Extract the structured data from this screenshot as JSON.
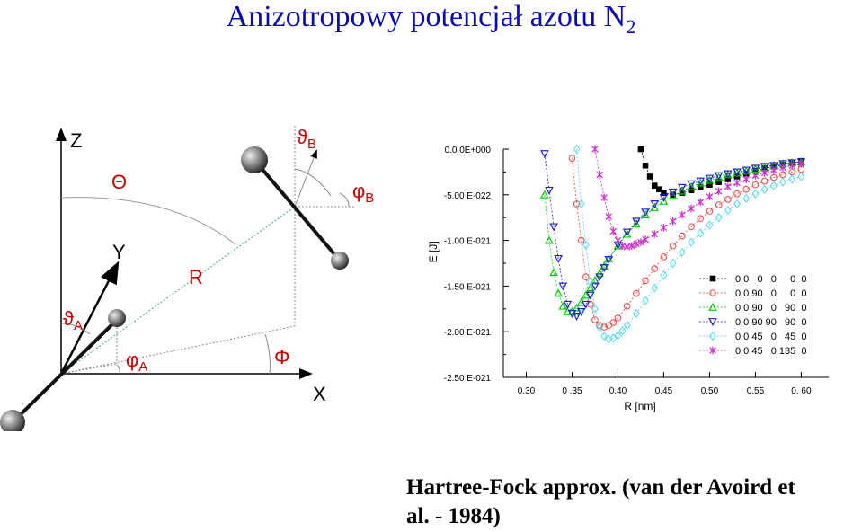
{
  "title_main": "Anizotropowy potencjał azotu N",
  "title_sub": "2",
  "diagram": {
    "axis_z": "Z",
    "axis_y": "Y",
    "axis_x": "X",
    "theta_big": "Θ",
    "theta_a": "ϑ",
    "theta_a_sub": "A",
    "theta_b": "ϑ",
    "theta_b_sub": "B",
    "phi_a": "φ",
    "phi_a_sub": "A",
    "phi_b": "φ",
    "phi_b_sub": "B",
    "phi_big": "Φ",
    "r_label": "R",
    "label_color": "#cc0000"
  },
  "chart_data": {
    "type": "scatter",
    "xlabel": "R [nm]",
    "ylabel": "E [J]",
    "xlim": [
      0.275,
      0.63
    ],
    "ylim": [
      -2.5e-21,
      0.0
    ],
    "xticks": [
      0.3,
      0.35,
      0.4,
      0.45,
      0.5,
      0.55,
      0.6
    ],
    "xtick_labels": [
      "0.30",
      "0 .35",
      "0.40",
      "0.45",
      "0.50",
      "0.55",
      "0. 60"
    ],
    "yticks": [
      0.0,
      -5e-22,
      -1e-21,
      -1.5e-21,
      -2e-21,
      -2.5e-21
    ],
    "ytick_labels": [
      "0.0 0E+000",
      "-5.00 E-022",
      "-1.00 E-021",
      "-1.50 E-021",
      "-2.00 E-021",
      "-2.50 E-021"
    ],
    "legend_position": "right",
    "grid": false,
    "series": [
      {
        "name": "0 0   0   0     0  0",
        "color": "#000000",
        "marker": "square",
        "x": [
          0.425,
          0.43,
          0.435,
          0.44,
          0.445,
          0.45,
          0.46,
          0.47,
          0.48,
          0.49,
          0.5,
          0.51,
          0.52,
          0.53,
          0.54,
          0.55,
          0.56,
          0.57,
          0.58,
          0.59,
          0.6
        ],
        "y": [
          -0.0,
          -1.8e-22,
          -3e-22,
          -4e-22,
          -4.4e-22,
          -4.8e-22,
          -5e-22,
          -4.8e-22,
          -4.5e-22,
          -4.2e-22,
          -3.9e-22,
          -3.6e-22,
          -3.3e-22,
          -3e-22,
          -2.7e-22,
          -2.4e-22,
          -2.1e-22,
          -1.9e-22,
          -1.7e-22,
          -1.5e-22,
          -1.3e-22
        ]
      },
      {
        "name": "0 0 90   0     0  0",
        "color": "#ee4444",
        "marker": "circle",
        "x": [
          0.35,
          0.355,
          0.36,
          0.365,
          0.37,
          0.375,
          0.38,
          0.385,
          0.39,
          0.395,
          0.4,
          0.41,
          0.42,
          0.43,
          0.44,
          0.45,
          0.46,
          0.47,
          0.48,
          0.49,
          0.5,
          0.51,
          0.52,
          0.53,
          0.54,
          0.55,
          0.56,
          0.57,
          0.58,
          0.59,
          0.6
        ],
        "y": [
          -1e-22,
          -6e-22,
          -1e-21,
          -1.4e-21,
          -1.7e-21,
          -1.87e-21,
          -1.93e-21,
          -1.95e-21,
          -1.93e-21,
          -1.9e-21,
          -1.85e-21,
          -1.72e-21,
          -1.58e-21,
          -1.44e-21,
          -1.31e-21,
          -1.18e-21,
          -1.06e-21,
          -9.5e-22,
          -8.5e-22,
          -7.6e-22,
          -6.8e-22,
          -6.1e-22,
          -5.5e-22,
          -4.9e-22,
          -4.4e-22,
          -3.9e-22,
          -3.5e-22,
          -3.1e-22,
          -2.8e-22,
          -2.5e-22,
          -2.2e-22
        ]
      },
      {
        "name": "0 0 90   0   90  0",
        "color": "#00cc00",
        "marker": "triangle-up",
        "x": [
          0.32,
          0.325,
          0.33,
          0.335,
          0.34,
          0.345,
          0.35,
          0.355,
          0.36,
          0.365,
          0.37,
          0.375,
          0.38,
          0.385,
          0.39,
          0.4,
          0.41,
          0.42,
          0.43,
          0.44,
          0.45,
          0.46,
          0.47,
          0.48,
          0.49,
          0.5,
          0.51,
          0.52,
          0.53,
          0.54,
          0.55,
          0.56,
          0.57,
          0.58,
          0.59,
          0.6
        ],
        "y": [
          -5e-22,
          -1e-21,
          -1.35e-21,
          -1.58e-21,
          -1.72e-21,
          -1.78e-21,
          -1.78e-21,
          -1.74e-21,
          -1.68e-21,
          -1.6e-21,
          -1.52e-21,
          -1.44e-21,
          -1.36e-21,
          -1.28e-21,
          -1.2e-21,
          -1.06e-21,
          -9.3e-22,
          -8.2e-22,
          -7.2e-22,
          -6.4e-22,
          -5.7e-22,
          -5.1e-22,
          -4.6e-22,
          -4.1e-22,
          -3.7e-22,
          -3.4e-22,
          -3.1e-22,
          -2.8e-22,
          -2.6e-22,
          -2.4e-22,
          -2.2e-22,
          -2e-22,
          -1.8e-22,
          -1.6e-22,
          -1.5e-22,
          -1.4e-22
        ]
      },
      {
        "name": "0 0 90 90   90  0",
        "color": "#2222cc",
        "marker": "triangle-down",
        "x": [
          0.32,
          0.325,
          0.33,
          0.335,
          0.34,
          0.345,
          0.35,
          0.355,
          0.36,
          0.365,
          0.37,
          0.375,
          0.38,
          0.385,
          0.39,
          0.4,
          0.41,
          0.42,
          0.43,
          0.44,
          0.45,
          0.46,
          0.47,
          0.48,
          0.49,
          0.5,
          0.51,
          0.52,
          0.53,
          0.54,
          0.55,
          0.56,
          0.57,
          0.58,
          0.59,
          0.6
        ],
        "y": [
          -5e-23,
          -4.5e-22,
          -8.5e-22,
          -1.2e-21,
          -1.5e-21,
          -1.7e-21,
          -1.8e-21,
          -1.83e-21,
          -1.78e-21,
          -1.7e-21,
          -1.6e-21,
          -1.5e-21,
          -1.4e-21,
          -1.3e-21,
          -1.21e-21,
          -1.05e-21,
          -9.1e-22,
          -7.9e-22,
          -6.9e-22,
          -6e-22,
          -5.3e-22,
          -4.7e-22,
          -4.2e-22,
          -3.8e-22,
          -3.5e-22,
          -3.2e-22,
          -2.9e-22,
          -2.7e-22,
          -2.5e-22,
          -2.3e-22,
          -2.1e-22,
          -1.9e-22,
          -1.8e-22,
          -1.6e-22,
          -1.5e-22,
          -1.4e-22
        ]
      },
      {
        "name": "0 0 45   0   45  0",
        "color": "#55d8e8",
        "marker": "diamond",
        "x": [
          0.355,
          0.36,
          0.365,
          0.37,
          0.375,
          0.38,
          0.385,
          0.39,
          0.395,
          0.4,
          0.405,
          0.41,
          0.42,
          0.43,
          0.44,
          0.45,
          0.46,
          0.47,
          0.48,
          0.49,
          0.5,
          0.51,
          0.52,
          0.53,
          0.54,
          0.55,
          0.56,
          0.57,
          0.58,
          0.59,
          0.6
        ],
        "y": [
          -0.0,
          -6e-22,
          -1.05e-21,
          -1.45e-21,
          -1.75e-21,
          -1.95e-21,
          -2.05e-21,
          -2.08e-21,
          -2.07e-21,
          -2.04e-21,
          -1.99e-21,
          -1.93e-21,
          -1.8e-21,
          -1.66e-21,
          -1.52e-21,
          -1.38e-21,
          -1.25e-21,
          -1.13e-21,
          -1.02e-21,
          -9.2e-22,
          -8.3e-22,
          -7.5e-22,
          -6.7e-22,
          -6e-22,
          -5.4e-22,
          -4.9e-22,
          -4.4e-22,
          -4e-22,
          -3.6e-22,
          -3.3e-22,
          -3e-22
        ]
      },
      {
        "name": "0 0 45   0 135  0",
        "color": "#cc33cc",
        "marker": "star",
        "x": [
          0.375,
          0.38,
          0.385,
          0.39,
          0.395,
          0.4,
          0.405,
          0.41,
          0.415,
          0.42,
          0.425,
          0.43,
          0.44,
          0.45,
          0.46,
          0.47,
          0.48,
          0.49,
          0.5,
          0.51,
          0.52,
          0.53,
          0.54,
          0.55,
          0.56,
          0.57,
          0.58,
          0.59,
          0.6
        ],
        "y": [
          -0.0,
          -2.8e-22,
          -5.3e-22,
          -7.4e-22,
          -9e-22,
          -1e-21,
          -1.06e-21,
          -1.07e-21,
          -1.06e-21,
          -1.04e-21,
          -1.02e-21,
          -9.9e-22,
          -9.3e-22,
          -8.6e-22,
          -7.9e-22,
          -7.2e-22,
          -6.5e-22,
          -5.8e-22,
          -5.2e-22,
          -4.6e-22,
          -4.1e-22,
          -3.7e-22,
          -3.3e-22,
          -2.9e-22,
          -2.6e-22,
          -2.3e-22,
          -2e-22,
          -1.8e-22,
          -1.6e-22
        ]
      }
    ]
  },
  "caption_line1": "Hartree-Fock approx. (van der Avoird et",
  "caption_line2": "al. - 1984)"
}
